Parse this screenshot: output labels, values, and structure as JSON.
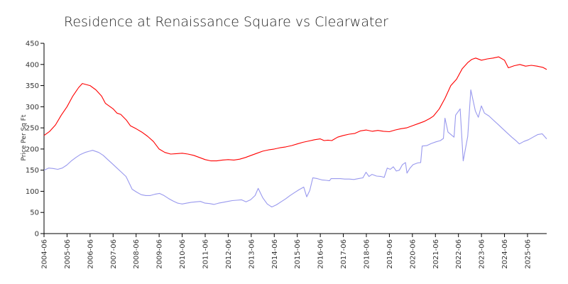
{
  "chart_data": {
    "type": "line",
    "title": "Residence at Renaissance Square vs Clearwater",
    "xlabel": "",
    "ylabel": "Price Per Sq Ft",
    "ylim": [
      0,
      450
    ],
    "yticks": [
      0,
      50,
      100,
      150,
      200,
      250,
      300,
      350,
      400,
      450
    ],
    "xticks": [
      "2004-06",
      "2005-06",
      "2006-06",
      "2007-06",
      "2008-06",
      "2009-06",
      "2010-06",
      "2011-06",
      "2012-06",
      "2013-06",
      "2014-06",
      "2015-06",
      "2016-06",
      "2017-06",
      "2018-06",
      "2019-06",
      "2020-06",
      "2021-06",
      "2022-06",
      "2023-06",
      "2024-06",
      "2025-06"
    ],
    "grid": false,
    "legend": "none",
    "series": [
      {
        "color": "#ff0000",
        "points": [
          [
            "2004-06",
            232
          ],
          [
            "2004-09",
            242
          ],
          [
            "2004-12",
            257
          ],
          [
            "2005-03",
            280
          ],
          [
            "2005-06",
            300
          ],
          [
            "2005-09",
            325
          ],
          [
            "2005-12",
            345
          ],
          [
            "2006-02",
            355
          ],
          [
            "2006-06",
            350
          ],
          [
            "2006-09",
            340
          ],
          [
            "2006-12",
            325
          ],
          [
            "2007-02",
            308
          ],
          [
            "2007-06",
            295
          ],
          [
            "2007-08",
            285
          ],
          [
            "2007-10",
            282
          ],
          [
            "2008-01",
            268
          ],
          [
            "2008-03",
            255
          ],
          [
            "2008-06",
            248
          ],
          [
            "2008-09",
            240
          ],
          [
            "2008-12",
            230
          ],
          [
            "2009-03",
            218
          ],
          [
            "2009-06",
            200
          ],
          [
            "2009-09",
            192
          ],
          [
            "2009-12",
            188
          ],
          [
            "2010-03",
            189
          ],
          [
            "2010-06",
            190
          ],
          [
            "2010-09",
            188
          ],
          [
            "2010-12",
            185
          ],
          [
            "2011-03",
            180
          ],
          [
            "2011-06",
            175
          ],
          [
            "2011-09",
            172
          ],
          [
            "2011-12",
            172
          ],
          [
            "2012-03",
            174
          ],
          [
            "2012-06",
            175
          ],
          [
            "2012-09",
            174
          ],
          [
            "2012-12",
            176
          ],
          [
            "2013-03",
            180
          ],
          [
            "2013-06",
            185
          ],
          [
            "2013-09",
            190
          ],
          [
            "2013-12",
            195
          ],
          [
            "2014-03",
            198
          ],
          [
            "2014-06",
            200
          ],
          [
            "2014-09",
            203
          ],
          [
            "2014-12",
            205
          ],
          [
            "2015-03",
            208
          ],
          [
            "2015-06",
            212
          ],
          [
            "2015-09",
            216
          ],
          [
            "2015-12",
            219
          ],
          [
            "2016-03",
            222
          ],
          [
            "2016-06",
            224
          ],
          [
            "2016-08",
            220
          ],
          [
            "2016-10",
            221
          ],
          [
            "2016-12",
            220
          ],
          [
            "2017-03",
            228
          ],
          [
            "2017-06",
            232
          ],
          [
            "2017-09",
            235
          ],
          [
            "2017-12",
            237
          ],
          [
            "2018-03",
            243
          ],
          [
            "2018-06",
            245
          ],
          [
            "2018-09",
            242
          ],
          [
            "2018-12",
            244
          ],
          [
            "2019-03",
            242
          ],
          [
            "2019-06",
            241
          ],
          [
            "2019-09",
            245
          ],
          [
            "2019-12",
            248
          ],
          [
            "2020-03",
            250
          ],
          [
            "2020-06",
            255
          ],
          [
            "2020-09",
            260
          ],
          [
            "2020-12",
            265
          ],
          [
            "2021-03",
            272
          ],
          [
            "2021-05",
            278
          ],
          [
            "2021-08",
            295
          ],
          [
            "2021-11",
            320
          ],
          [
            "2022-02",
            350
          ],
          [
            "2022-05",
            365
          ],
          [
            "2022-08",
            390
          ],
          [
            "2022-11",
            405
          ],
          [
            "2023-01",
            412
          ],
          [
            "2023-03",
            415
          ],
          [
            "2023-06",
            410
          ],
          [
            "2023-09",
            413
          ],
          [
            "2023-12",
            415
          ],
          [
            "2024-03",
            418
          ],
          [
            "2024-06",
            410
          ],
          [
            "2024-08",
            392
          ],
          [
            "2024-11",
            397
          ],
          [
            "2025-02",
            400
          ],
          [
            "2025-05",
            396
          ],
          [
            "2025-08",
            398
          ],
          [
            "2025-11",
            396
          ],
          [
            "2026-02",
            393
          ],
          [
            "2026-04",
            388
          ]
        ]
      },
      {
        "color": "#9999ee",
        "points": [
          [
            "2004-06",
            150
          ],
          [
            "2004-09",
            155
          ],
          [
            "2004-12",
            154
          ],
          [
            "2005-03",
            152
          ],
          [
            "2005-06",
            155
          ],
          [
            "2005-09",
            162
          ],
          [
            "2005-12",
            172
          ],
          [
            "2006-03",
            180
          ],
          [
            "2006-06",
            187
          ],
          [
            "2006-09",
            192
          ],
          [
            "2006-12",
            195
          ],
          [
            "2007-02",
            197
          ],
          [
            "2007-06",
            192
          ],
          [
            "2007-09",
            185
          ],
          [
            "2007-12",
            175
          ],
          [
            "2008-03",
            165
          ],
          [
            "2008-06",
            155
          ],
          [
            "2008-09",
            145
          ],
          [
            "2008-12",
            135
          ],
          [
            "2009-02",
            120
          ],
          [
            "2009-04",
            105
          ],
          [
            "2009-07",
            98
          ],
          [
            "2009-10",
            92
          ],
          [
            "2010-01",
            90
          ],
          [
            "2010-04",
            90
          ],
          [
            "2010-07",
            93
          ],
          [
            "2010-10",
            95
          ],
          [
            "2011-01",
            90
          ],
          [
            "2011-04",
            83
          ],
          [
            "2011-07",
            77
          ],
          [
            "2011-10",
            72
          ],
          [
            "2012-01",
            70
          ],
          [
            "2012-04",
            72
          ],
          [
            "2012-07",
            74
          ],
          [
            "2012-10",
            75
          ],
          [
            "2013-01",
            76
          ],
          [
            "2013-04",
            72
          ],
          [
            "2013-07",
            71
          ],
          [
            "2013-10",
            69
          ],
          [
            "2014-01",
            72
          ],
          [
            "2014-04",
            74
          ],
          [
            "2014-07",
            76
          ],
          [
            "2014-10",
            78
          ],
          [
            "2015-01",
            79
          ],
          [
            "2015-04",
            80
          ],
          [
            "2015-07",
            75
          ],
          [
            "2015-10",
            80
          ],
          [
            "2016-01",
            90
          ],
          [
            "2016-03",
            107
          ],
          [
            "2016-06",
            85
          ],
          [
            "2016-09",
            70
          ],
          [
            "2016-12",
            63
          ],
          [
            "2017-03",
            68
          ],
          [
            "2017-06",
            75
          ],
          [
            "2017-09",
            82
          ],
          [
            "2017-12",
            90
          ],
          [
            "2018-03",
            97
          ],
          [
            "2018-06",
            104
          ],
          [
            "2018-09",
            110
          ],
          [
            "2018-11",
            87
          ],
          [
            "2019-01",
            102
          ],
          [
            "2019-03",
            132
          ],
          [
            "2019-06",
            130
          ],
          [
            "2019-09",
            127
          ],
          [
            "2019-12",
            126
          ],
          [
            "2020-02",
            125
          ],
          [
            "2020-03",
            130
          ],
          [
            "2020-06",
            130
          ],
          [
            "2020-09",
            130
          ],
          [
            "2020-12",
            129
          ],
          [
            "2021-03",
            129
          ],
          [
            "2021-06",
            128
          ],
          [
            "2021-09",
            130
          ],
          [
            "2021-12",
            132
          ],
          [
            "2022-02",
            145
          ],
          [
            "2022-04",
            135
          ],
          [
            "2022-06",
            140
          ],
          [
            "2022-09",
            136
          ],
          [
            "2022-12",
            135
          ],
          [
            "2023-02",
            133
          ],
          [
            "2023-04",
            155
          ],
          [
            "2023-06",
            152
          ],
          [
            "2023-08",
            158
          ],
          [
            "2023-10",
            148
          ],
          [
            "2023-12",
            150
          ],
          [
            "2024-02",
            163
          ],
          [
            "2024-04",
            168
          ],
          [
            "2024-05",
            143
          ],
          [
            "2024-07",
            155
          ],
          [
            "2024-09",
            163
          ],
          [
            "2024-12",
            167
          ],
          [
            "2025-02",
            168
          ],
          [
            "2025-03",
            207
          ],
          [
            "2025-06",
            208
          ],
          [
            "2025-09",
            213
          ],
          [
            "2025-12",
            217
          ],
          [
            "2026-03",
            220
          ],
          [
            "2026-05",
            225
          ],
          [
            "2026-06",
            273
          ],
          [
            "2026-08",
            240
          ],
          [
            "2026-10",
            234
          ],
          [
            "2026-12",
            228
          ],
          [
            "2027-01",
            280
          ],
          [
            "2027-04",
            295
          ],
          [
            "2027-06",
            172
          ],
          [
            "2027-09",
            230
          ],
          [
            "2027-11",
            340
          ],
          [
            "2028-02",
            290
          ],
          [
            "2028-04",
            275
          ],
          [
            "2028-06",
            302
          ],
          [
            "2028-08",
            285
          ],
          [
            "2028-11",
            278
          ],
          [
            "2029-02",
            268
          ],
          [
            "2029-05",
            258
          ],
          [
            "2029-08",
            248
          ],
          [
            "2029-11",
            238
          ],
          [
            "2030-02",
            228
          ],
          [
            "2030-05",
            219
          ],
          [
            "2030-07",
            212
          ],
          [
            "2030-10",
            218
          ],
          [
            "2031-01",
            222
          ],
          [
            "2031-04",
            228
          ],
          [
            "2031-07",
            234
          ],
          [
            "2031-10",
            236
          ],
          [
            "2032-01",
            224
          ]
        ]
      }
    ]
  }
}
